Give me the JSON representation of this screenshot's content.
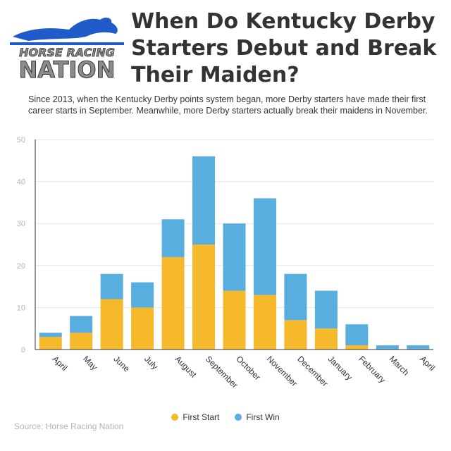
{
  "header": {
    "title": "When Do Kentucky Derby Starters Debut and Break Their Maiden?",
    "subtitle": "Since 2013, when the Kentucky Derby points system began, more Derby starters have made their first career starts in September. Meanwhile, more Derby starters actually break their maidens in November."
  },
  "logo": {
    "line1": "HORSE RACING",
    "line2": "NATION"
  },
  "footer": {
    "source": "Source: Horse Racing Nation"
  },
  "colors": {
    "first_start": "#f6b92b",
    "first_win": "#58aede",
    "axis": "#333333",
    "grid": "#e6e6e6",
    "tick_label": "#b3b3b3"
  },
  "chart_data": {
    "type": "bar",
    "stacked": true,
    "categories": [
      "April",
      "May",
      "June",
      "July",
      "August",
      "September",
      "October",
      "November",
      "December",
      "January",
      "February",
      "March",
      "April"
    ],
    "series": [
      {
        "name": "First Start",
        "color": "#f6b92b",
        "values": [
          3,
          4,
          12,
          10,
          22,
          25,
          14,
          13,
          7,
          5,
          1,
          0,
          0
        ]
      },
      {
        "name": "First Win",
        "color": "#58aede",
        "values": [
          1,
          4,
          6,
          6,
          9,
          21,
          16,
          23,
          11,
          9,
          5,
          1,
          1
        ]
      }
    ],
    "ylim": [
      0,
      50
    ],
    "yticks": [
      0,
      10,
      20,
      30,
      40,
      50
    ],
    "grid": true,
    "legend_position": "bottom"
  }
}
